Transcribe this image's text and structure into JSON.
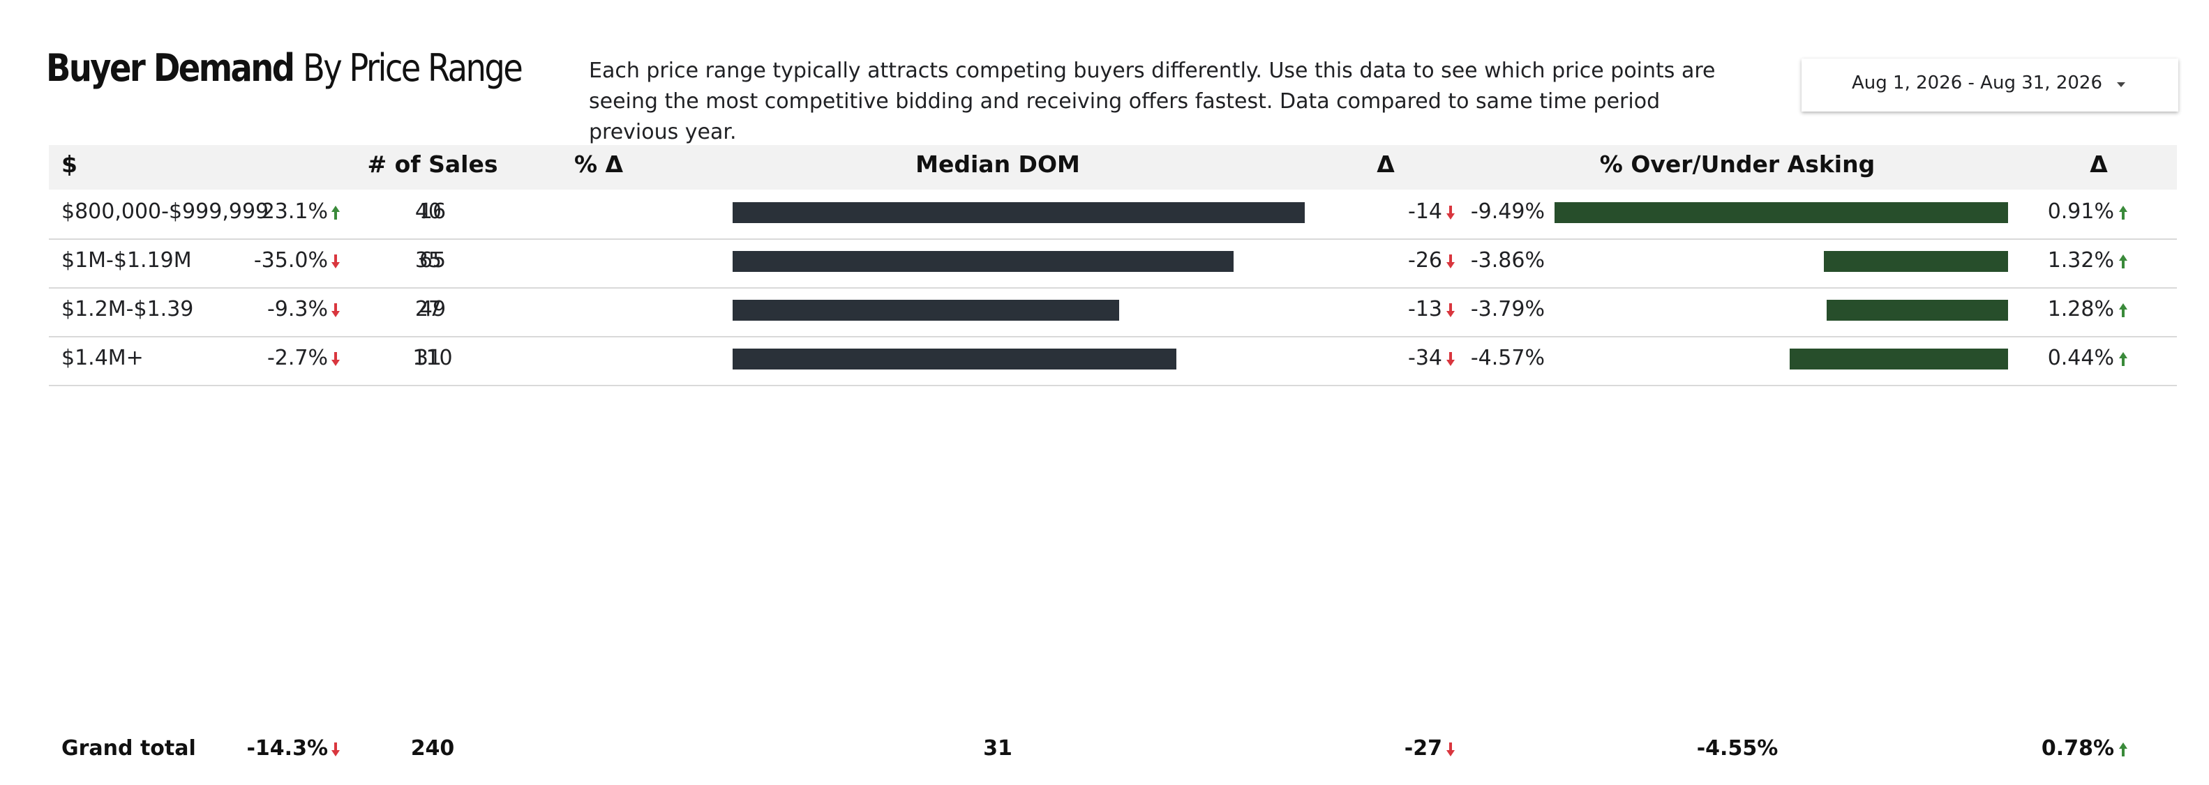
{
  "title": {
    "bold": "Buyer Demand",
    "light": "By Price Range"
  },
  "description": "Each price range typically attracts competing buyers differently.  Use this data to see which price points are seeing the most competitive bidding and receiving offers fastest.  Data compared to same time period previous year.",
  "date_range": {
    "label": "Aug 1, 2026 - Aug 31, 2026",
    "icon": "caret-down-icon"
  },
  "colors": {
    "up_arrow": "#3a8a3a",
    "down_arrow": "#d9363e",
    "dom_bar": "#2a3139",
    "over_bar": "#274e2b",
    "header_bg": "#f2f2f2"
  },
  "table": {
    "headers": {
      "range": "$",
      "sales": "# of Sales",
      "pct_delta": "% Δ",
      "median_dom": "Median DOM",
      "dom_delta": "Δ",
      "over_under": "% Over/Under Asking",
      "over_delta": "Δ"
    },
    "rows": [
      {
        "range": "$800,000-$999,999",
        "sales": "16",
        "pct_delta": "23.1%",
        "pct_dir": "up",
        "dom": "40",
        "dom_value": 40,
        "dom_delta": "-14",
        "dom_dir": "down",
        "over": "-9.49%",
        "over_value": -9.49,
        "over_delta": "0.91%",
        "over_dir": "up"
      },
      {
        "range": "$1M-$1.19M",
        "sales": "65",
        "pct_delta": "-35.0%",
        "pct_dir": "down",
        "dom": "35",
        "dom_value": 35,
        "dom_delta": "-26",
        "dom_dir": "down",
        "over": "-3.86%",
        "over_value": -3.86,
        "over_delta": "1.32%",
        "over_dir": "up"
      },
      {
        "range": "$1.2M-$1.39",
        "sales": "49",
        "pct_delta": "-9.3%",
        "pct_dir": "down",
        "dom": "27",
        "dom_value": 27,
        "dom_delta": "-13",
        "dom_dir": "down",
        "over": "-3.79%",
        "over_value": -3.79,
        "over_delta": "1.28%",
        "over_dir": "up"
      },
      {
        "range": "$1.4M+",
        "sales": "110",
        "pct_delta": "-2.7%",
        "pct_dir": "down",
        "dom": "31",
        "dom_value": 31,
        "dom_delta": "-34",
        "dom_dir": "down",
        "over": "-4.57%",
        "over_value": -4.57,
        "over_delta": "0.44%",
        "over_dir": "up"
      }
    ],
    "total": {
      "label": "Grand total",
      "sales": "240",
      "pct_delta": "-14.3%",
      "pct_dir": "down",
      "dom": "31",
      "dom_delta": "-27",
      "dom_dir": "down",
      "over": "-4.55%",
      "over_delta": "0.78%",
      "over_dir": "up"
    }
  }
}
